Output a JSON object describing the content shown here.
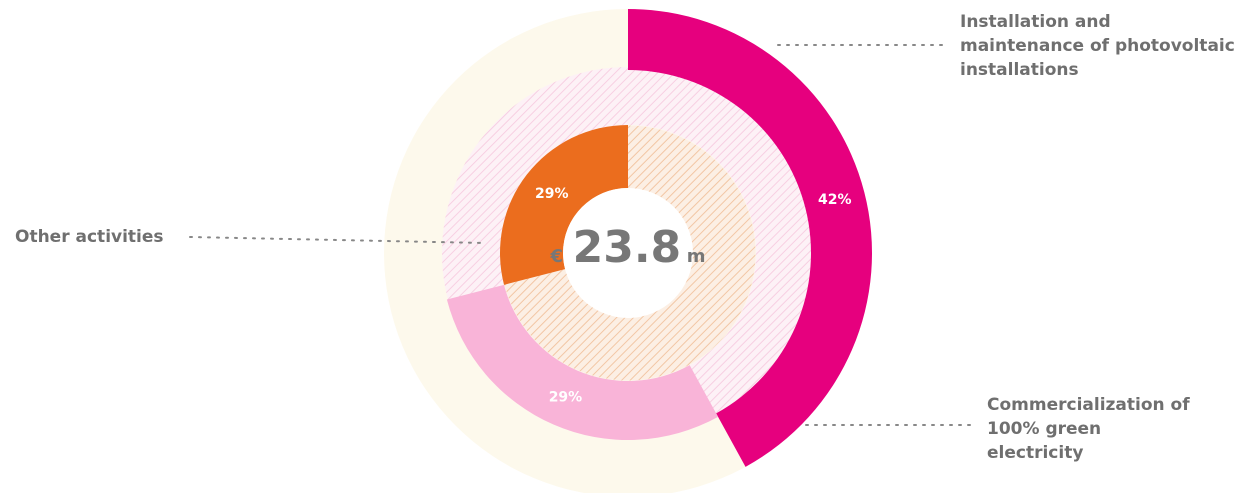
{
  "chart_data": {
    "type": "nested-donut",
    "categories": [
      "Installation and maintenance of photovoltaic installations",
      "Commercialization of 100% green electricity",
      "Other activities"
    ],
    "values": [
      42,
      29,
      29
    ],
    "value_labels": [
      "42%",
      "29%",
      "29%"
    ],
    "colors": [
      "#e6007e",
      "#f9b4d8",
      "#eb6d1e"
    ],
    "center": {
      "prefix": "€",
      "value": "23.8",
      "suffix": "m"
    }
  }
}
